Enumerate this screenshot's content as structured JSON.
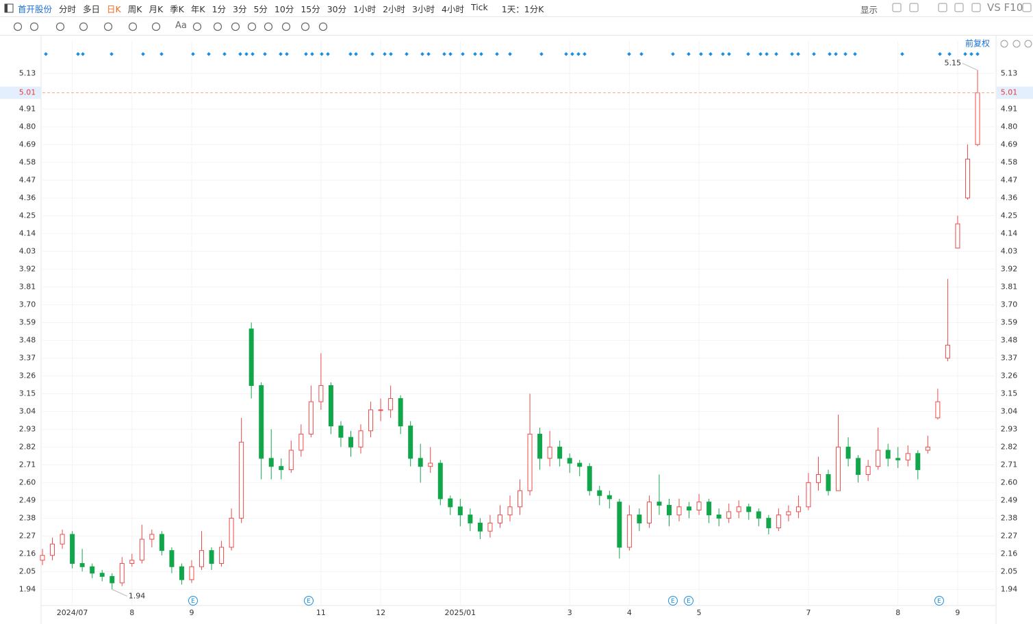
{
  "toolbar": {
    "stock": "首开股份",
    "periods": [
      "分时",
      "多日",
      "日K",
      "周K",
      "月K",
      "季K",
      "年K",
      "1分",
      "3分",
      "5分",
      "10分",
      "15分",
      "30分",
      "1小时",
      "2小时",
      "3小时",
      "4小时",
      "Tick"
    ],
    "multi_period": "1天：1分K",
    "display": "显示",
    "compare": "VS F10",
    "text_tool": "Aa"
  },
  "chart_data": {
    "type": "candlestick",
    "price_mode": "前复权",
    "categories": [
      null,
      null,
      null,
      "2024/07",
      null,
      null,
      null,
      null,
      null,
      "8",
      null,
      null,
      null,
      null,
      null,
      "9",
      null,
      null,
      null,
      null,
      null,
      null,
      null,
      null,
      null,
      null,
      null,
      null,
      "11",
      null,
      null,
      null,
      null,
      null,
      "12",
      null,
      null,
      null,
      null,
      null,
      null,
      null,
      "2025/01",
      null,
      null,
      null,
      null,
      null,
      null,
      null,
      null,
      null,
      null,
      "3",
      null,
      null,
      null,
      null,
      null,
      "4",
      null,
      null,
      null,
      null,
      null,
      null,
      "5",
      null,
      null,
      null,
      null,
      null,
      null,
      null,
      null,
      null,
      null,
      "7",
      null,
      null,
      null,
      null,
      null,
      null,
      null,
      null,
      "8",
      null,
      null,
      null,
      null,
      null,
      "9",
      null,
      null
    ],
    "open": [
      2.12,
      2.15,
      2.22,
      2.28,
      2.1,
      2.08,
      2.04,
      2.02,
      1.98,
      2.1,
      2.12,
      2.25,
      2.28,
      2.18,
      2.08,
      2.0,
      2.08,
      2.18,
      2.1,
      2.2,
      2.38,
      3.55,
      3.2,
      2.75,
      2.7,
      2.68,
      2.8,
      2.9,
      3.1,
      3.2,
      2.95,
      2.88,
      2.82,
      2.92,
      3.05,
      3.05,
      3.12,
      2.95,
      2.75,
      2.7,
      2.72,
      2.5,
      2.45,
      2.4,
      2.35,
      2.3,
      2.35,
      2.4,
      2.45,
      2.55,
      2.9,
      2.75,
      2.82,
      2.75,
      2.72,
      2.7,
      2.55,
      2.52,
      2.48,
      2.2,
      2.4,
      2.35,
      2.48,
      2.46,
      2.4,
      2.45,
      2.43,
      2.48,
      2.4,
      2.38,
      2.42,
      2.45,
      2.42,
      2.38,
      2.32,
      2.4,
      2.42,
      2.45,
      2.6,
      2.65,
      2.55,
      2.82,
      2.75,
      2.65,
      2.7,
      2.8,
      2.75,
      2.74,
      2.78,
      2.8,
      3.0,
      3.37,
      4.05,
      4.36,
      4.69
    ],
    "high": [
      2.19,
      2.26,
      2.31,
      2.3,
      2.19,
      2.1,
      2.06,
      2.04,
      2.14,
      2.16,
      2.34,
      2.31,
      2.3,
      2.2,
      2.1,
      2.12,
      2.3,
      2.2,
      2.24,
      2.44,
      3.0,
      3.59,
      3.22,
      2.93,
      2.75,
      2.86,
      2.96,
      3.2,
      3.4,
      3.22,
      2.98,
      2.92,
      2.96,
      3.1,
      3.12,
      3.2,
      3.14,
      2.98,
      2.84,
      2.82,
      2.74,
      2.52,
      2.5,
      2.44,
      2.38,
      2.4,
      2.46,
      2.52,
      2.62,
      3.15,
      2.94,
      2.92,
      2.86,
      2.78,
      2.74,
      2.72,
      2.58,
      2.55,
      2.5,
      2.46,
      2.44,
      2.52,
      2.65,
      2.5,
      2.5,
      2.48,
      2.53,
      2.5,
      2.44,
      2.47,
      2.49,
      2.47,
      2.44,
      2.4,
      2.44,
      2.46,
      2.52,
      2.66,
      2.76,
      2.68,
      3.02,
      2.88,
      2.77,
      2.74,
      2.94,
      2.84,
      2.82,
      2.83,
      2.8,
      2.89,
      3.18,
      3.86,
      4.25,
      4.69,
      5.15
    ],
    "low": [
      2.09,
      2.12,
      2.19,
      2.07,
      2.05,
      2.01,
      1.99,
      1.94,
      1.96,
      2.08,
      2.1,
      2.2,
      2.15,
      2.04,
      1.97,
      1.98,
      2.06,
      2.06,
      2.08,
      2.18,
      2.35,
      3.12,
      2.62,
      2.62,
      2.62,
      2.66,
      2.76,
      2.88,
      3.05,
      2.9,
      2.82,
      2.76,
      2.78,
      2.88,
      2.98,
      3.0,
      2.9,
      2.7,
      2.6,
      2.66,
      2.46,
      2.4,
      2.33,
      2.3,
      2.25,
      2.26,
      2.32,
      2.36,
      2.4,
      2.52,
      2.68,
      2.7,
      2.7,
      2.66,
      2.64,
      2.52,
      2.46,
      2.44,
      2.13,
      2.18,
      2.3,
      2.32,
      2.4,
      2.33,
      2.36,
      2.38,
      2.4,
      2.35,
      2.33,
      2.35,
      2.38,
      2.37,
      2.33,
      2.28,
      2.3,
      2.36,
      2.38,
      2.43,
      2.55,
      2.52,
      2.55,
      2.7,
      2.6,
      2.61,
      2.68,
      2.7,
      2.69,
      2.7,
      2.62,
      2.78,
      2.99,
      3.35,
      4.05,
      4.35,
      4.68
    ],
    "close": [
      2.15,
      2.22,
      2.28,
      2.1,
      2.08,
      2.04,
      2.02,
      1.98,
      2.1,
      2.12,
      2.25,
      2.28,
      2.18,
      2.08,
      2.0,
      2.08,
      2.18,
      2.1,
      2.2,
      2.38,
      2.85,
      3.2,
      2.75,
      2.7,
      2.68,
      2.8,
      2.9,
      3.1,
      3.2,
      2.95,
      2.88,
      2.82,
      2.92,
      3.05,
      3.05,
      3.12,
      2.95,
      2.75,
      2.7,
      2.72,
      2.5,
      2.45,
      2.4,
      2.35,
      2.3,
      2.35,
      2.4,
      2.45,
      2.55,
      2.9,
      2.75,
      2.82,
      2.75,
      2.72,
      2.7,
      2.55,
      2.52,
      2.5,
      2.2,
      2.4,
      2.35,
      2.48,
      2.46,
      2.4,
      2.45,
      2.43,
      2.48,
      2.4,
      2.38,
      2.42,
      2.45,
      2.42,
      2.38,
      2.32,
      2.4,
      2.42,
      2.45,
      2.6,
      2.65,
      2.55,
      2.82,
      2.75,
      2.65,
      2.7,
      2.8,
      2.75,
      2.74,
      2.78,
      2.68,
      2.82,
      3.1,
      3.45,
      4.2,
      4.6,
      5.01
    ],
    "up_color": "#f04848",
    "down_color": "#12a64b",
    "ylim": [
      1.84,
      5.33
    ],
    "yticks": [
      1.94,
      2.05,
      2.16,
      2.27,
      2.38,
      2.49,
      {
        "value": 2.6,
        "label": "2.60"
      },
      2.71,
      2.82,
      2.93,
      3.04,
      3.15,
      3.26,
      3.37,
      3.48,
      3.59,
      {
        "value": 3.7,
        "label": "3.70"
      },
      3.81,
      3.92,
      4.03,
      4.14,
      4.25,
      4.36,
      4.47,
      4.58,
      4.69,
      {
        "value": 4.8,
        "label": "4.80"
      },
      4.91,
      5.13
    ],
    "grid": true,
    "event_markers": [
      "E",
      "E",
      "E",
      "E",
      "E"
    ]
  }
}
